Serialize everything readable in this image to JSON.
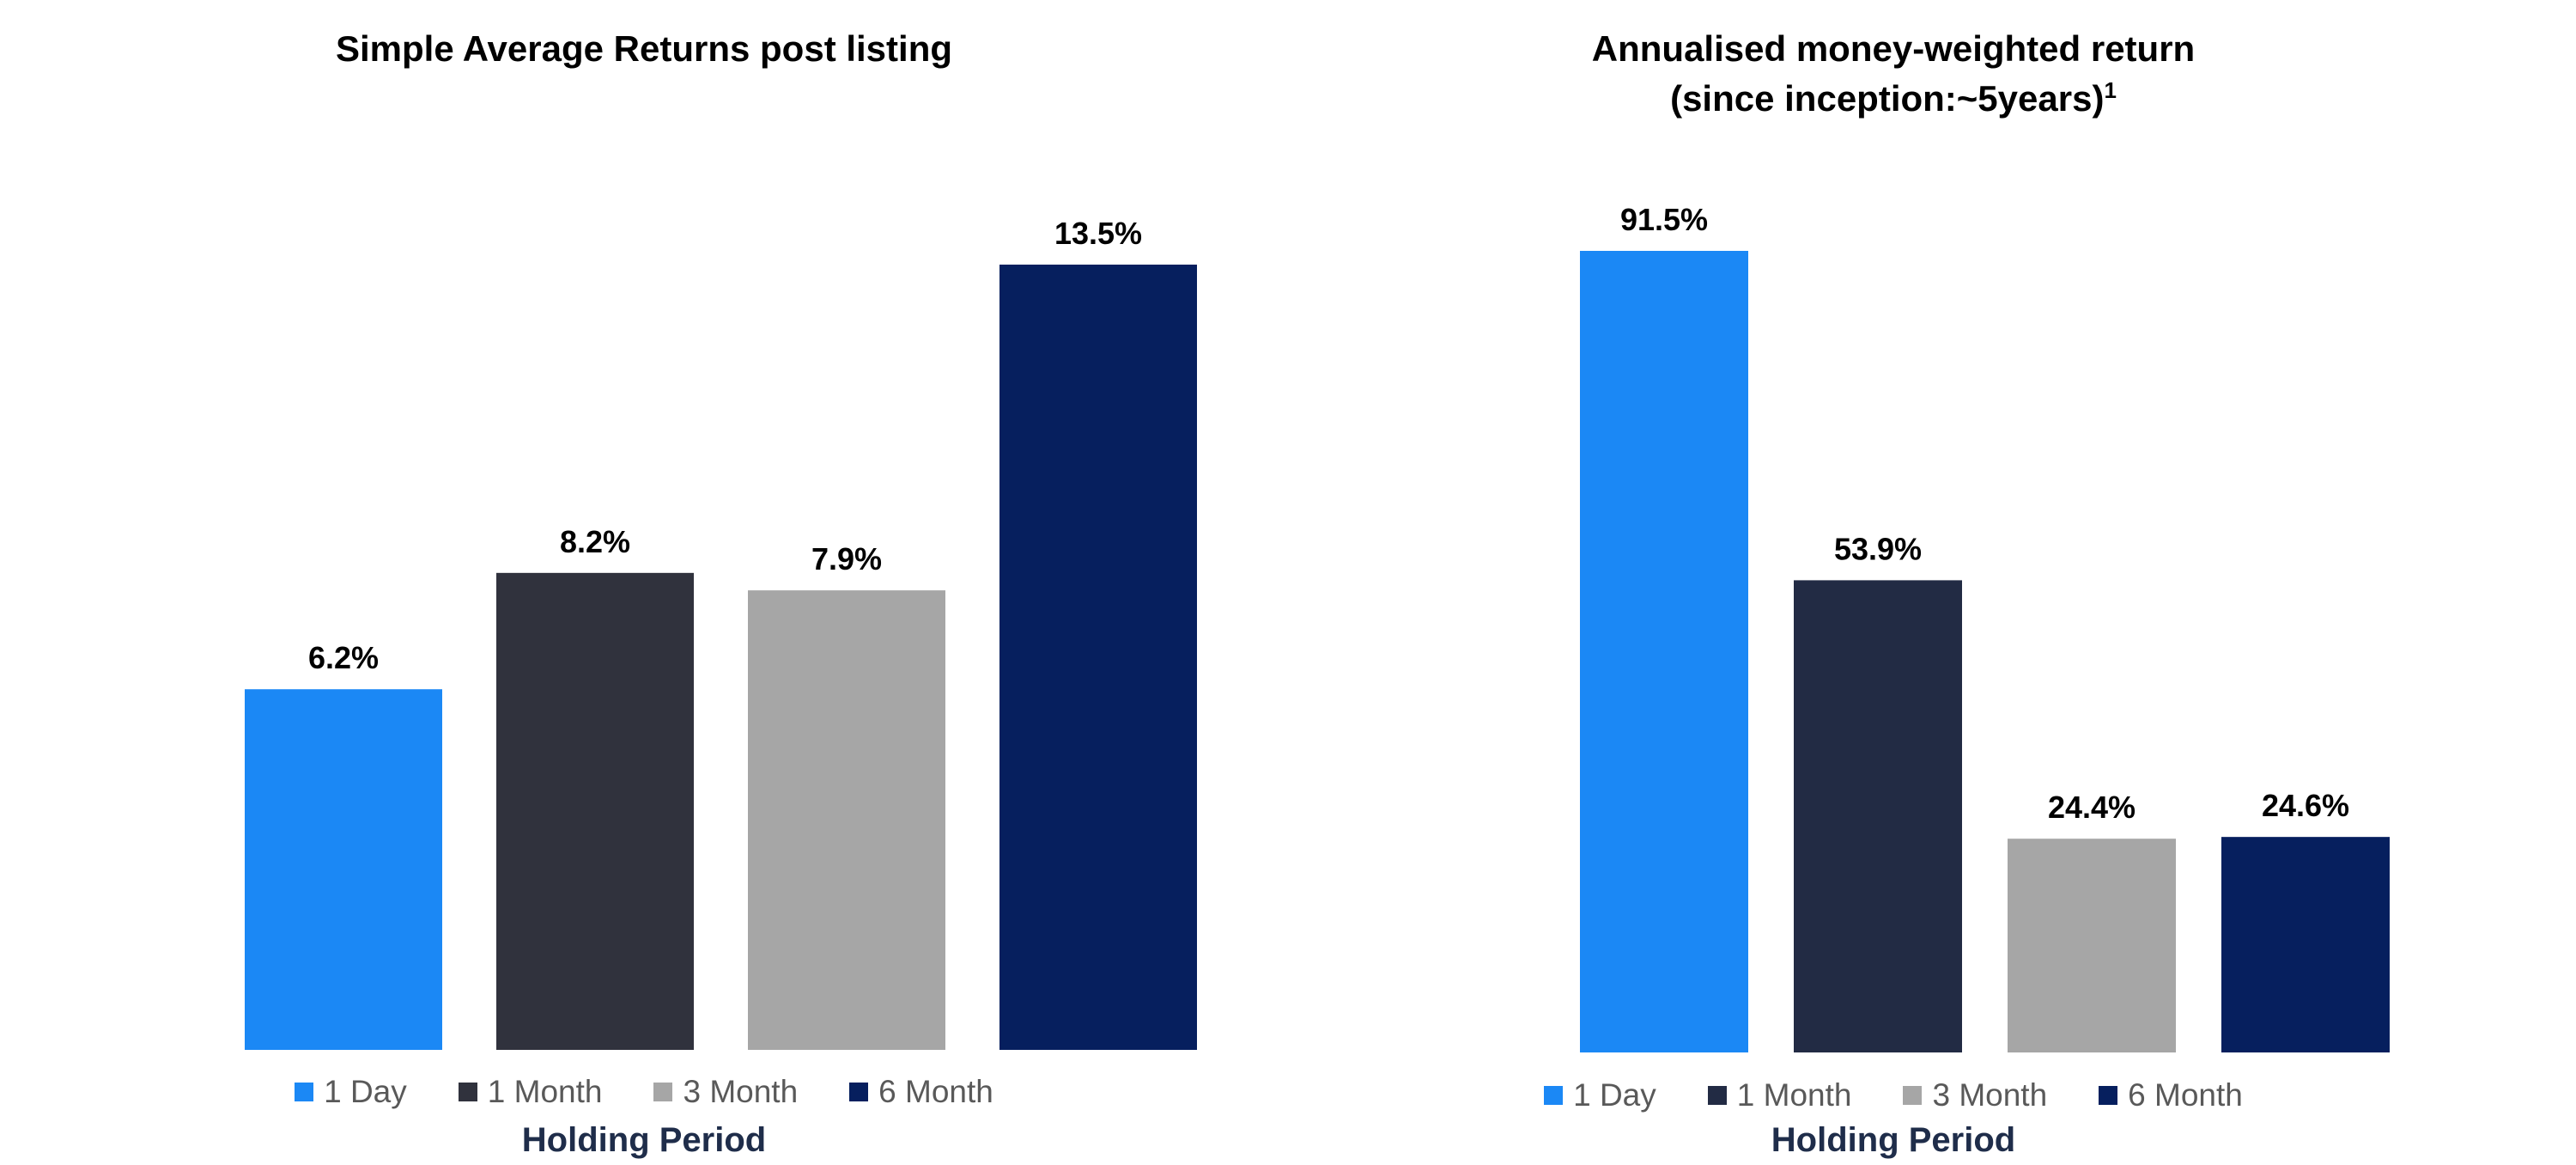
{
  "chart_data": [
    {
      "type": "bar",
      "title": "Simple Average Returns post listing",
      "xlabel": "Holding Period",
      "ylabel": "",
      "unit": "%",
      "ylim": [
        0,
        13.5
      ],
      "categories": [
        "1 Day",
        "1 Month",
        "3 Month",
        "6 Month"
      ],
      "values": [
        6.2,
        8.2,
        7.9,
        13.5
      ],
      "data_labels": [
        "6.2%",
        "8.2%",
        "7.9%",
        "13.5%"
      ],
      "colors": [
        "#1b88f5",
        "#30323d",
        "#a6a6a6",
        "#061f5e"
      ],
      "legend": "bottom",
      "grid": false
    },
    {
      "type": "bar",
      "title": "Annualised money-weighted return",
      "subtitle": "(since inception:~5years)",
      "subtitle_superscript": "1",
      "xlabel": "Holding Period",
      "ylabel": "",
      "unit": "%",
      "ylim": [
        0,
        91.5
      ],
      "categories": [
        "1 Day",
        "1 Month",
        "3 Month",
        "6 Month"
      ],
      "values": [
        91.5,
        53.9,
        24.4,
        24.6
      ],
      "data_labels": [
        "91.5%",
        "53.9%",
        "24.4%",
        "24.6%"
      ],
      "colors": [
        "#1b88f5",
        "#222b44",
        "#a6a6a6",
        "#061f5e"
      ],
      "legend": "bottom",
      "grid": false
    }
  ]
}
